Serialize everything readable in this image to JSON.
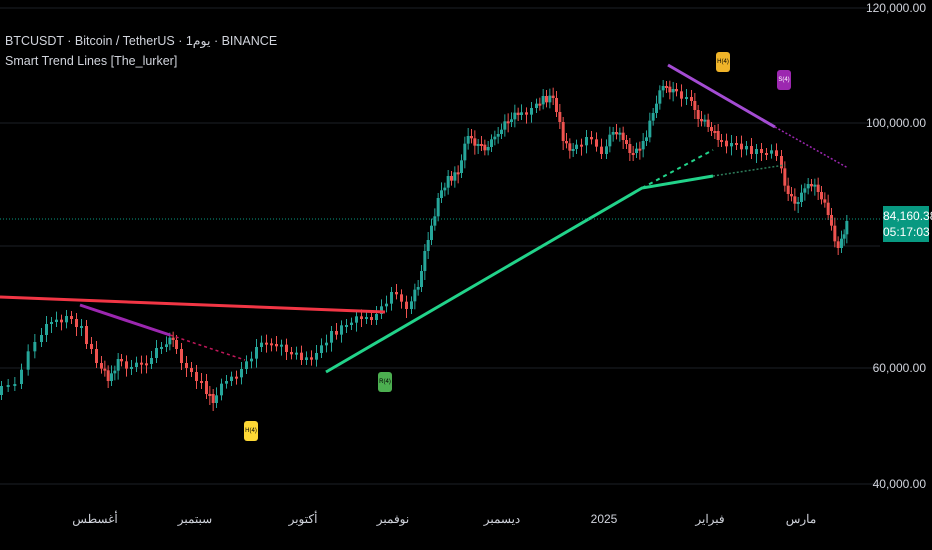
{
  "header": {
    "symbol_line": "BTCUSDT · Bitcoin / TetherUS · 1يوم · BINANCE",
    "indicator_line": "Smart Trend Lines [The_lurker]"
  },
  "price_axis": {
    "ticks": [
      "120,000.00",
      "100,000.00",
      "60,000.00",
      "40,000.00"
    ],
    "current_price": "84,160.38",
    "countdown": "05:17:03"
  },
  "time_axis": {
    "labels": [
      "أغسطس",
      "سبتمبر",
      "أكتوبر",
      "نوفمبر",
      "ديسمبر",
      "2025",
      "فبراير",
      "مارس"
    ]
  },
  "markers": [
    {
      "label": "H(4)",
      "color": "#f0b429",
      "kind": "down-pointing"
    },
    {
      "label": "S(4)",
      "color": "#9c27b0",
      "kind": "down-pointing"
    },
    {
      "label": "R(4)",
      "color": "#4caf50",
      "kind": "up-pointing"
    },
    {
      "label": "H(4)",
      "color": "#fdd835",
      "kind": "up-pointing"
    }
  ],
  "colors": {
    "background": "#000000",
    "bull_candle": "#26a69a",
    "bear_candle": "#ef5350",
    "support_line": "#22d38a",
    "resistance_line": "#f23645",
    "downtrend_line": "#9c27b0",
    "price_badge": "#089981"
  }
}
